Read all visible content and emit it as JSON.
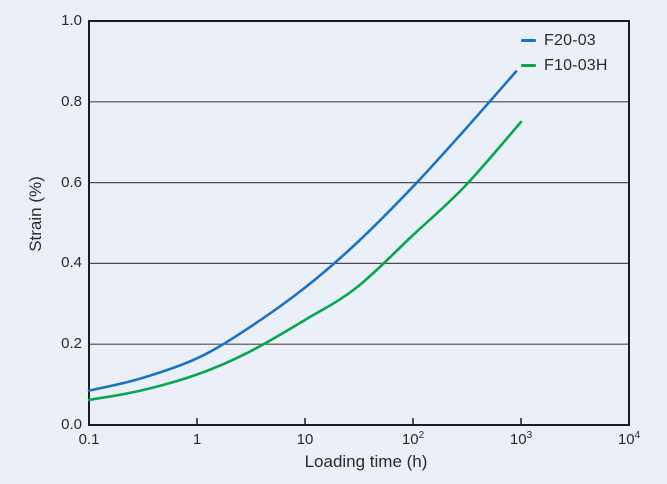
{
  "chart_data": {
    "type": "line",
    "title": "",
    "xlabel": "Loading time (h)",
    "ylabel": "Strain (%)",
    "x_scale": "log",
    "xlim": [
      0.1,
      10000
    ],
    "ylim": [
      0,
      1
    ],
    "x_tick_values": [
      0.1,
      1,
      10,
      100,
      1000,
      10000
    ],
    "x_inner_tick_values": [
      1,
      10,
      100,
      1000
    ],
    "y_tick_values": [
      0.0,
      0.2,
      0.4,
      0.6,
      0.8,
      1.0
    ],
    "grid_values": [
      0.2,
      0.4,
      0.6,
      0.8
    ],
    "grid": "horizontal",
    "legend_position": "top-right-inside",
    "series": [
      {
        "name": "F20-03",
        "color": "#1b72c0",
        "points": [
          [
            0.1,
            0.085
          ],
          [
            0.3,
            0.115
          ],
          [
            1,
            0.165
          ],
          [
            3,
            0.24
          ],
          [
            10,
            0.34
          ],
          [
            30,
            0.45
          ],
          [
            100,
            0.59
          ],
          [
            300,
            0.73
          ],
          [
            900,
            0.875
          ]
        ]
      },
      {
        "name": "F10-03H",
        "color": "#0aa551",
        "points": [
          [
            0.1,
            0.062
          ],
          [
            0.3,
            0.085
          ],
          [
            1,
            0.125
          ],
          [
            3,
            0.18
          ],
          [
            10,
            0.26
          ],
          [
            30,
            0.34
          ],
          [
            100,
            0.47
          ],
          [
            300,
            0.59
          ],
          [
            1000,
            0.75
          ]
        ]
      }
    ]
  },
  "axes": {
    "x": {
      "label": "Loading time (h)",
      "ticks": [
        {
          "base": "0.1",
          "exp": ""
        },
        {
          "base": "1",
          "exp": ""
        },
        {
          "base": "10",
          "exp": ""
        },
        {
          "base": "10",
          "exp": "2"
        },
        {
          "base": "10",
          "exp": "3"
        },
        {
          "base": "10",
          "exp": "4"
        }
      ]
    },
    "y": {
      "label": "Strain (%)",
      "ticks": [
        "1.0",
        "0.8",
        "0.6",
        "0.4",
        "0.2",
        "0.0"
      ]
    }
  },
  "legend": {
    "items": [
      {
        "label": "F20-03",
        "color": "#1b72c0"
      },
      {
        "label": "F10-03H",
        "color": "#0aa551"
      }
    ]
  },
  "colors": {
    "background": "#ebeff7",
    "grid": "#4c4c52",
    "frame": "#1c1c20",
    "text": "#2a2a2e",
    "series_blue": "#1b72c0",
    "series_green": "#0aa551"
  }
}
